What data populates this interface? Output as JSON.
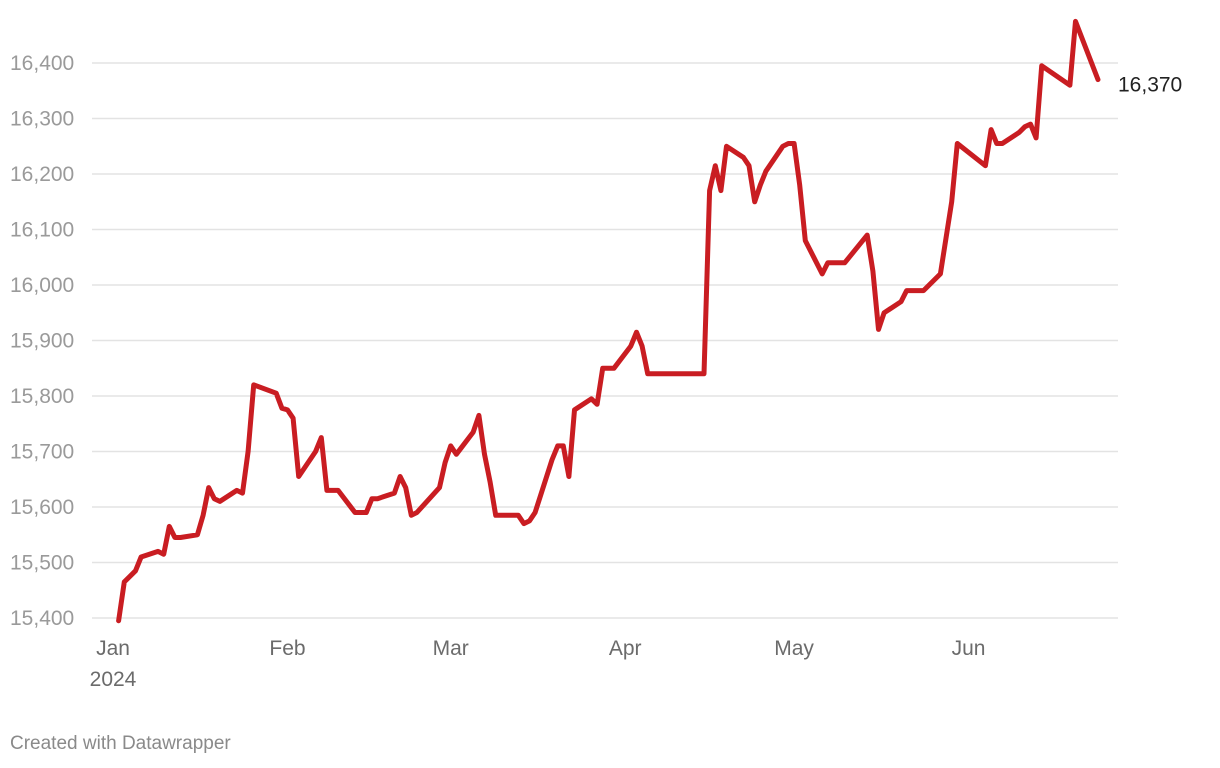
{
  "credit": "Created with Datawrapper",
  "colors": {
    "line": "#c91d22",
    "grid": "#e3e3e3",
    "tick_text": "#9a9a9a"
  },
  "chart_data": {
    "type": "line",
    "title": "",
    "xlabel": "",
    "ylabel": "",
    "ylim": [
      15400,
      16400
    ],
    "xlim": [
      "2024-01-01",
      "2024-06-24"
    ],
    "grid": true,
    "legend": "none",
    "y_ticks": [
      "15,400",
      "15,500",
      "15,600",
      "15,700",
      "15,800",
      "15,900",
      "16,000",
      "16,100",
      "16,200",
      "16,300",
      "16,400"
    ],
    "y_tick_values": [
      15400,
      15500,
      15600,
      15700,
      15800,
      15900,
      16000,
      16100,
      16200,
      16300,
      16400
    ],
    "x_ticks": [
      {
        "date": "2024-01-01",
        "label": "Jan",
        "sublabel": "2024"
      },
      {
        "date": "2024-02-01",
        "label": "Feb",
        "sublabel": ""
      },
      {
        "date": "2024-03-01",
        "label": "Mar",
        "sublabel": ""
      },
      {
        "date": "2024-04-01",
        "label": "Apr",
        "sublabel": ""
      },
      {
        "date": "2024-05-01",
        "label": "May",
        "sublabel": ""
      },
      {
        "date": "2024-06-01",
        "label": "Jun",
        "sublabel": ""
      }
    ],
    "end_label": "16,370",
    "series": [
      {
        "color": "#c91d22",
        "points": [
          [
            "2024-01-02",
            15395
          ],
          [
            "2024-01-03",
            15465
          ],
          [
            "2024-01-05",
            15485
          ],
          [
            "2024-01-06",
            15510
          ],
          [
            "2024-01-09",
            15520
          ],
          [
            "2024-01-10",
            15515
          ],
          [
            "2024-01-11",
            15565
          ],
          [
            "2024-01-12",
            15545
          ],
          [
            "2024-01-13",
            15545
          ],
          [
            "2024-01-16",
            15550
          ],
          [
            "2024-01-17",
            15585
          ],
          [
            "2024-01-18",
            15635
          ],
          [
            "2024-01-19",
            15615
          ],
          [
            "2024-01-20",
            15610
          ],
          [
            "2024-01-23",
            15630
          ],
          [
            "2024-01-24",
            15625
          ],
          [
            "2024-01-25",
            15700
          ],
          [
            "2024-01-26",
            15820
          ],
          [
            "2024-01-30",
            15805
          ],
          [
            "2024-01-31",
            15778
          ],
          [
            "2024-02-01",
            15775
          ],
          [
            "2024-02-02",
            15760
          ],
          [
            "2024-02-03",
            15655
          ],
          [
            "2024-02-06",
            15700
          ],
          [
            "2024-02-07",
            15725
          ],
          [
            "2024-02-08",
            15630
          ],
          [
            "2024-02-10",
            15630
          ],
          [
            "2024-02-13",
            15590
          ],
          [
            "2024-02-15",
            15590
          ],
          [
            "2024-02-16",
            15615
          ],
          [
            "2024-02-17",
            15615
          ],
          [
            "2024-02-20",
            15625
          ],
          [
            "2024-02-21",
            15655
          ],
          [
            "2024-02-22",
            15635
          ],
          [
            "2024-02-23",
            15585
          ],
          [
            "2024-02-24",
            15590
          ],
          [
            "2024-02-28",
            15635
          ],
          [
            "2024-02-29",
            15680
          ],
          [
            "2024-03-01",
            15710
          ],
          [
            "2024-03-02",
            15695
          ],
          [
            "2024-03-05",
            15735
          ],
          [
            "2024-03-06",
            15765
          ],
          [
            "2024-03-07",
            15695
          ],
          [
            "2024-03-08",
            15645
          ],
          [
            "2024-03-09",
            15585
          ],
          [
            "2024-03-13",
            15585
          ],
          [
            "2024-03-14",
            15570
          ],
          [
            "2024-03-15",
            15575
          ],
          [
            "2024-03-16",
            15590
          ],
          [
            "2024-03-19",
            15685
          ],
          [
            "2024-03-20",
            15710
          ],
          [
            "2024-03-21",
            15710
          ],
          [
            "2024-03-22",
            15655
          ],
          [
            "2024-03-23",
            15775
          ],
          [
            "2024-03-26",
            15795
          ],
          [
            "2024-03-27",
            15785
          ],
          [
            "2024-03-28",
            15850
          ],
          [
            "2024-03-30",
            15850
          ],
          [
            "2024-04-02",
            15890
          ],
          [
            "2024-04-03",
            15915
          ],
          [
            "2024-04-04",
            15890
          ],
          [
            "2024-04-05",
            15840
          ],
          [
            "2024-04-15",
            15840
          ],
          [
            "2024-04-16",
            16170
          ],
          [
            "2024-04-17",
            16215
          ],
          [
            "2024-04-18",
            16170
          ],
          [
            "2024-04-19",
            16250
          ],
          [
            "2024-04-22",
            16230
          ],
          [
            "2024-04-23",
            16215
          ],
          [
            "2024-04-24",
            16150
          ],
          [
            "2024-04-25",
            16180
          ],
          [
            "2024-04-26",
            16205
          ],
          [
            "2024-04-29",
            16250
          ],
          [
            "2024-04-30",
            16255
          ],
          [
            "2024-05-01",
            16255
          ],
          [
            "2024-05-02",
            16180
          ],
          [
            "2024-05-03",
            16080
          ],
          [
            "2024-05-06",
            16020
          ],
          [
            "2024-05-07",
            16040
          ],
          [
            "2024-05-10",
            16040
          ],
          [
            "2024-05-14",
            16090
          ],
          [
            "2024-05-15",
            16025
          ],
          [
            "2024-05-16",
            15920
          ],
          [
            "2024-05-17",
            15950
          ],
          [
            "2024-05-20",
            15970
          ],
          [
            "2024-05-21",
            15990
          ],
          [
            "2024-05-24",
            15990
          ],
          [
            "2024-05-27",
            16020
          ],
          [
            "2024-05-29",
            16150
          ],
          [
            "2024-05-30",
            16255
          ],
          [
            "2024-06-04",
            16215
          ],
          [
            "2024-06-05",
            16280
          ],
          [
            "2024-06-06",
            16255
          ],
          [
            "2024-06-07",
            16255
          ],
          [
            "2024-06-10",
            16275
          ],
          [
            "2024-06-11",
            16285
          ],
          [
            "2024-06-12",
            16290
          ],
          [
            "2024-06-13",
            16265
          ],
          [
            "2024-06-14",
            16395
          ],
          [
            "2024-06-19",
            16360
          ],
          [
            "2024-06-20",
            16475
          ],
          [
            "2024-06-24",
            16370
          ]
        ]
      }
    ]
  }
}
